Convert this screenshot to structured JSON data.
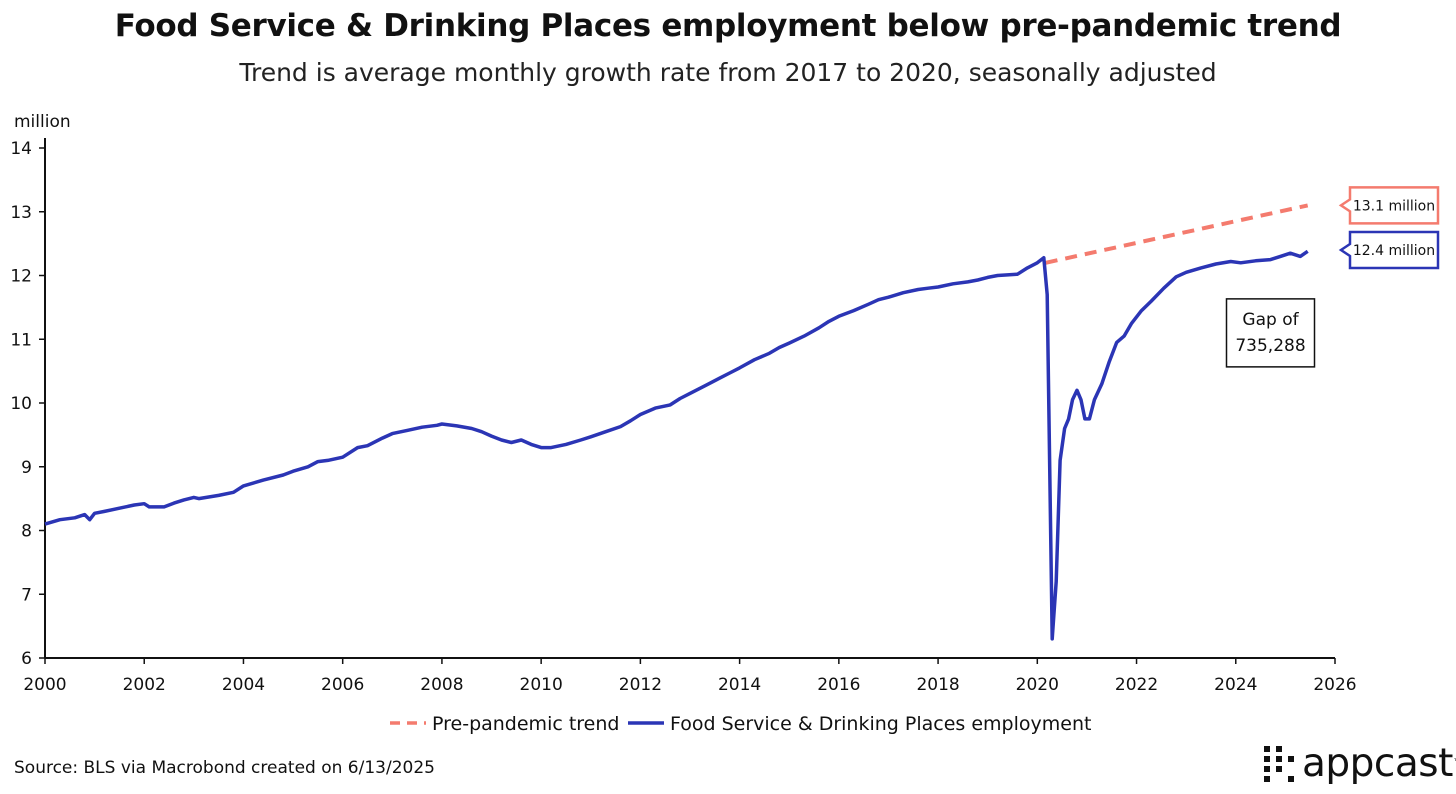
{
  "chart_data": {
    "type": "line",
    "title": "Food Service & Drinking Places employment below pre-pandemic trend",
    "subtitle": "Trend is average monthly growth rate from 2017 to 2020, seasonally adjusted",
    "ylabel": "million",
    "xlabel": "",
    "xlim": [
      2000,
      2026
    ],
    "ylim": [
      6,
      14
    ],
    "x_ticks": [
      2000,
      2002,
      2004,
      2006,
      2008,
      2010,
      2012,
      2014,
      2016,
      2018,
      2020,
      2022,
      2024,
      2026
    ],
    "y_ticks": [
      6,
      7,
      8,
      9,
      10,
      11,
      12,
      13,
      14
    ],
    "grid": false,
    "legend_position": "bottom-center",
    "series": [
      {
        "name": "Pre-pandemic trend",
        "style": "dashed",
        "color": "#f47b6e",
        "x": [
          2020.17,
          2025.45
        ],
        "y": [
          12.2,
          13.1
        ]
      },
      {
        "name": "Food Service & Drinking Places employment",
        "style": "solid",
        "color": "#2b35b5",
        "x": [
          2000.0,
          2000.3,
          2000.6,
          2000.8,
          2000.9,
          2001.0,
          2001.2,
          2001.5,
          2001.8,
          2002.0,
          2002.1,
          2002.4,
          2002.6,
          2002.8,
          2003.0,
          2003.1,
          2003.5,
          2003.8,
          2004.0,
          2004.4,
          2004.8,
          2005.0,
          2005.3,
          2005.5,
          2005.7,
          2006.0,
          2006.3,
          2006.5,
          2006.8,
          2007.0,
          2007.3,
          2007.6,
          2007.9,
          2008.0,
          2008.3,
          2008.6,
          2008.8,
          2009.0,
          2009.2,
          2009.4,
          2009.6,
          2009.8,
          2010.0,
          2010.2,
          2010.5,
          2010.8,
          2011.0,
          2011.3,
          2011.6,
          2011.8,
          2012.0,
          2012.3,
          2012.6,
          2012.8,
          2013.0,
          2013.3,
          2013.6,
          2013.8,
          2014.0,
          2014.3,
          2014.6,
          2014.8,
          2015.0,
          2015.3,
          2015.6,
          2015.8,
          2016.0,
          2016.3,
          2016.6,
          2016.8,
          2017.0,
          2017.3,
          2017.6,
          2017.8,
          2018.0,
          2018.3,
          2018.6,
          2018.8,
          2019.0,
          2019.2,
          2019.4,
          2019.6,
          2019.8,
          2020.0,
          2020.13,
          2020.2,
          2020.25,
          2020.3,
          2020.38,
          2020.46,
          2020.55,
          2020.63,
          2020.71,
          2020.8,
          2020.88,
          2020.96,
          2021.05,
          2021.15,
          2021.3,
          2021.45,
          2021.6,
          2021.75,
          2021.9,
          2022.1,
          2022.3,
          2022.55,
          2022.8,
          2023.0,
          2023.3,
          2023.6,
          2023.9,
          2024.1,
          2024.4,
          2024.7,
          2024.9,
          2025.1,
          2025.3,
          2025.45
        ],
        "y": [
          8.1,
          8.17,
          8.2,
          8.25,
          8.17,
          8.27,
          8.3,
          8.35,
          8.4,
          8.42,
          8.37,
          8.37,
          8.43,
          8.48,
          8.52,
          8.5,
          8.55,
          8.6,
          8.7,
          8.79,
          8.87,
          8.93,
          9.0,
          9.08,
          9.1,
          9.15,
          9.3,
          9.33,
          9.45,
          9.52,
          9.57,
          9.62,
          9.65,
          9.67,
          9.64,
          9.6,
          9.55,
          9.48,
          9.42,
          9.38,
          9.42,
          9.35,
          9.3,
          9.3,
          9.35,
          9.42,
          9.47,
          9.55,
          9.63,
          9.72,
          9.82,
          9.92,
          9.97,
          10.07,
          10.15,
          10.27,
          10.39,
          10.47,
          10.55,
          10.68,
          10.78,
          10.87,
          10.94,
          11.05,
          11.18,
          11.28,
          11.36,
          11.45,
          11.55,
          11.62,
          11.66,
          11.73,
          11.78,
          11.8,
          11.82,
          11.87,
          11.9,
          11.93,
          11.97,
          12.0,
          12.01,
          12.02,
          12.12,
          12.2,
          12.28,
          11.7,
          9.0,
          6.3,
          7.2,
          9.1,
          9.6,
          9.75,
          10.05,
          10.2,
          10.05,
          9.75,
          9.75,
          10.05,
          10.3,
          10.65,
          10.95,
          11.05,
          11.25,
          11.45,
          11.6,
          11.8,
          11.98,
          12.05,
          12.12,
          12.18,
          12.22,
          12.2,
          12.23,
          12.25,
          12.3,
          12.35,
          12.3,
          12.38
        ]
      }
    ],
    "annotations": [
      {
        "text_lines": [
          "Gap of",
          "735,288"
        ],
        "x": 2024.7,
        "y": 11.1,
        "type": "box"
      },
      {
        "text": "13.1 million",
        "color": "#f47b6e",
        "attached_to": "Pre-pandemic trend",
        "y": 13.1
      },
      {
        "text": "12.4 million",
        "color": "#2b35b5",
        "attached_to": "Food Service & Drinking Places employment",
        "y": 12.4
      }
    ],
    "source": "Source: BLS via Macrobond created on 6/13/2025"
  },
  "brand": {
    "name": "appcast",
    "trademark": "™",
    "icon": "dot-grid-icon"
  },
  "colors": {
    "trend": "#f47b6e",
    "actual": "#2b35b5",
    "axis": "#111111"
  }
}
